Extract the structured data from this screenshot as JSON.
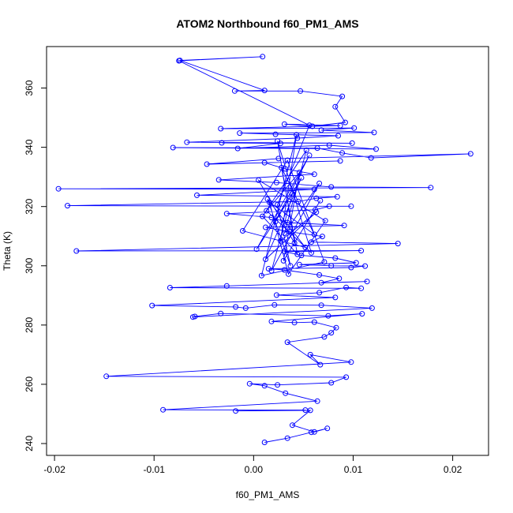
{
  "chart_data": {
    "type": "line",
    "title": "ATOM2 Northbound f60_PM1_AMS",
    "xlabel": "f60_PM1_AMS",
    "ylabel": "Theta (K)",
    "xlim": [
      -0.0208,
      0.0236
    ],
    "ylim": [
      236.0,
      374.0
    ],
    "xticks": [
      -0.02,
      -0.01,
      0.0,
      0.01,
      0.02
    ],
    "xtick_labels": [
      "-0.02",
      "-0.01",
      "0.00",
      "0.01",
      "0.02"
    ],
    "yticks": [
      240,
      260,
      280,
      300,
      320,
      340,
      360
    ],
    "ytick_labels": [
      "240",
      "260",
      "280",
      "300",
      "320",
      "340",
      "360"
    ],
    "grid": false,
    "legend": "none",
    "color": "#0000ff",
    "marker": "open-circle",
    "series": [
      {
        "points": [
          [
            0.0011,
            240.4
          ],
          [
            0.0034,
            241.8
          ],
          [
            0.0058,
            243.8
          ],
          [
            0.0074,
            245.1
          ],
          [
            0.0061,
            243.9
          ],
          [
            0.0039,
            246.2
          ],
          [
            0.0057,
            251.2
          ],
          [
            -0.0018,
            251.0
          ],
          [
            0.0052,
            251.3
          ],
          [
            -0.0091,
            251.4
          ],
          [
            0.0064,
            254.3
          ],
          [
            0.0032,
            257.0
          ],
          [
            0.0011,
            259.5
          ],
          [
            -0.0004,
            260.2
          ],
          [
            0.0024,
            259.8
          ],
          [
            0.0078,
            260.5
          ],
          [
            0.0093,
            262.4
          ],
          [
            -0.0148,
            262.7
          ],
          [
            0.0098,
            267.5
          ],
          [
            0.0057,
            270.0
          ],
          [
            0.0067,
            266.6
          ],
          [
            0.0034,
            274.2
          ],
          [
            0.0071,
            276.0
          ],
          [
            0.0078,
            277.4
          ],
          [
            0.0083,
            279.1
          ],
          [
            0.0061,
            281.0
          ],
          [
            0.0041,
            280.8
          ],
          [
            0.0018,
            281.2
          ],
          [
            0.0109,
            283.8
          ],
          [
            0.0075,
            283.1
          ],
          [
            -0.0033,
            283.9
          ],
          [
            -0.0059,
            282.9
          ],
          [
            -0.0061,
            282.7
          ],
          [
            0.0119,
            285.7
          ],
          [
            0.0068,
            286.7
          ],
          [
            0.0021,
            286.8
          ],
          [
            -0.0008,
            285.7
          ],
          [
            -0.0018,
            286.1
          ],
          [
            -0.0102,
            286.6
          ],
          [
            0.0082,
            289.3
          ],
          [
            0.0023,
            290.1
          ],
          [
            0.0066,
            290.9
          ],
          [
            0.0093,
            292.7
          ],
          [
            0.0108,
            292.4
          ],
          [
            -0.0084,
            292.6
          ],
          [
            -0.0027,
            293.2
          ],
          [
            0.0114,
            294.7
          ],
          [
            0.0068,
            294.3
          ],
          [
            0.0086,
            295.7
          ],
          [
            0.0066,
            296.9
          ],
          [
            0.0031,
            298.6
          ],
          [
            0.0015,
            299.0
          ],
          [
            0.0098,
            299.4
          ],
          [
            0.0112,
            299.9
          ],
          [
            0.0078,
            300.0
          ],
          [
            0.0046,
            300.4
          ],
          [
            0.0103,
            301.0
          ],
          [
            0.0082,
            302.6
          ],
          [
            0.0048,
            303.5
          ],
          [
            0.0031,
            304.8
          ],
          [
            0.0108,
            305.1
          ],
          [
            -0.0178,
            305.0
          ],
          [
            0.0145,
            307.5
          ],
          [
            0.0058,
            308.0
          ],
          [
            0.0069,
            309.9
          ],
          [
            0.0036,
            311.5
          ],
          [
            0.0012,
            313.0
          ],
          [
            0.0091,
            313.6
          ],
          [
            0.0034,
            314.6
          ],
          [
            0.0018,
            316.3
          ],
          [
            -0.0027,
            317.6
          ],
          [
            0.0062,
            318.9
          ],
          [
            0.0076,
            320.1
          ],
          [
            0.0098,
            320.1
          ],
          [
            -0.0187,
            320.3
          ],
          [
            0.0045,
            321.7
          ],
          [
            0.0063,
            322.8
          ],
          [
            0.0084,
            323.3
          ],
          [
            -0.0057,
            323.8
          ],
          [
            0.0061,
            325.8
          ],
          [
            -0.0196,
            326.0
          ],
          [
            0.0178,
            326.4
          ],
          [
            0.0078,
            326.6
          ],
          [
            0.0023,
            328.1
          ],
          [
            -0.0035,
            329.0
          ],
          [
            0.0061,
            330.9
          ],
          [
            0.0032,
            332.7
          ],
          [
            0.0011,
            334.8
          ],
          [
            0.0087,
            335.4
          ],
          [
            -0.0047,
            334.3
          ],
          [
            0.0025,
            336.2
          ],
          [
            0.0218,
            337.8
          ],
          [
            0.0118,
            336.4
          ],
          [
            0.0089,
            338.1
          ],
          [
            0.0064,
            339.7
          ],
          [
            -0.0081,
            339.9
          ],
          [
            0.0123,
            339.4
          ],
          [
            0.0076,
            340.7
          ],
          [
            -0.0016,
            339.6
          ],
          [
            0.0027,
            341.3
          ],
          [
            -0.0032,
            341.5
          ],
          [
            0.0099,
            341.4
          ],
          [
            -0.0067,
            341.7
          ],
          [
            0.0044,
            343.1
          ],
          [
            0.0085,
            343.9
          ],
          [
            0.0022,
            344.4
          ],
          [
            -0.0014,
            344.8
          ],
          [
            0.0121,
            345.0
          ],
          [
            0.0068,
            345.8
          ],
          [
            0.0101,
            346.5
          ],
          [
            -0.0033,
            346.3
          ],
          [
            0.0087,
            347.3
          ],
          [
            0.0031,
            347.8
          ],
          [
            0.0059,
            347.1
          ],
          [
            0.0092,
            348.4
          ],
          [
            0.0082,
            353.7
          ],
          [
            0.0089,
            357.2
          ],
          [
            0.0047,
            359.0
          ],
          [
            -0.0019,
            359.0
          ],
          [
            0.0011,
            359.2
          ],
          [
            -0.0074,
            369.3
          ],
          [
            0.0009,
            370.6
          ],
          [
            -0.0075,
            369.2
          ],
          [
            0.0056,
            347.4
          ],
          [
            0.0024,
            320.6
          ],
          [
            0.0037,
            300.0
          ],
          [
            0.0014,
            322.5
          ],
          [
            0.0052,
            306.2
          ],
          [
            -0.0011,
            311.8
          ],
          [
            0.0034,
            335.6
          ],
          [
            0.0071,
            301.3
          ],
          [
            0.0008,
            296.7
          ],
          [
            0.0043,
            344.2
          ],
          [
            0.0027,
            308.4
          ],
          [
            0.0063,
            318.1
          ],
          [
            0.0012,
            302.2
          ],
          [
            0.0048,
            329.7
          ],
          [
            0.0022,
            314.9
          ],
          [
            0.0056,
            337.3
          ],
          [
            0.0003,
            305.6
          ],
          [
            0.0039,
            324.3
          ],
          [
            0.0018,
            298.3
          ],
          [
            0.0066,
            327.8
          ],
          [
            0.0031,
            311.0
          ],
          [
            0.0053,
            339.0
          ],
          [
            0.0009,
            316.7
          ],
          [
            0.0044,
            303.9
          ],
          [
            0.0028,
            333.1
          ],
          [
            0.0061,
            310.6
          ],
          [
            0.0016,
            321.4
          ],
          [
            0.0035,
            297.2
          ],
          [
            0.0072,
            315.2
          ],
          [
            0.0005,
            328.9
          ],
          [
            0.0041,
            307.7
          ],
          [
            0.0024,
            342.1
          ],
          [
            0.0058,
            304.4
          ],
          [
            0.0013,
            318.6
          ],
          [
            0.0046,
            331.5
          ],
          [
            0.003,
            301.7
          ],
          [
            0.0067,
            322.0
          ]
        ]
      }
    ]
  }
}
